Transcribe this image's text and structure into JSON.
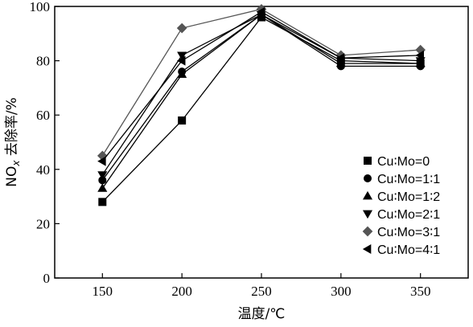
{
  "chart_data": {
    "type": "line",
    "x": [
      150,
      200,
      250,
      300,
      350
    ],
    "xlabel": "温度/℃",
    "ylabel_prefix": "NO",
    "ylabel_sub": "x",
    "ylabel_suffix": " 去除率/%",
    "xlim": [
      120,
      380
    ],
    "ylim": [
      0,
      100
    ],
    "xticks": [
      150,
      200,
      250,
      300,
      350
    ],
    "yticks": [
      0,
      20,
      40,
      60,
      80,
      100
    ],
    "grid": false,
    "legend_position": "right",
    "series": [
      {
        "name": "Cu∶Mo=0",
        "marker": "square",
        "color": "#000000",
        "values": [
          28,
          58,
          96,
          80,
          79
        ]
      },
      {
        "name": "Cu∶Mo=1∶1",
        "marker": "circle",
        "color": "#000000",
        "values": [
          36,
          76,
          97,
          78,
          78
        ]
      },
      {
        "name": "Cu∶Mo=1∶2",
        "marker": "triangle-up",
        "color": "#000000",
        "values": [
          33,
          75,
          97,
          79,
          79
        ]
      },
      {
        "name": "Cu∶Mo=2∶1",
        "marker": "triangle-down",
        "color": "#000000",
        "values": [
          38,
          82,
          97,
          81,
          80
        ]
      },
      {
        "name": "Cu∶Mo=3∶1",
        "marker": "diamond",
        "color": "#555555",
        "values": [
          45,
          92,
          99,
          82,
          84
        ]
      },
      {
        "name": "Cu∶Mo=4∶1",
        "marker": "triangle-left",
        "color": "#000000",
        "values": [
          43,
          80,
          98,
          81,
          82
        ]
      }
    ]
  }
}
